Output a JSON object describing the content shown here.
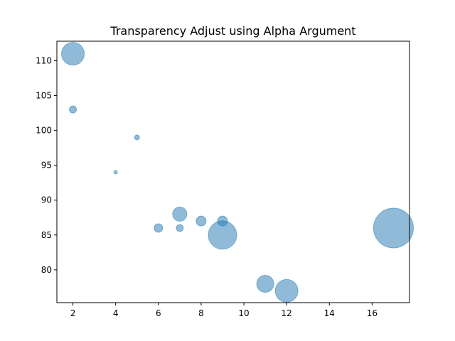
{
  "chart_data": {
    "type": "scatter",
    "title": "Transparency Adjust using Alpha Argument",
    "xlabel": "",
    "ylabel": "",
    "xlim": [
      1.25,
      17.75
    ],
    "ylim": [
      75.3,
      112.8
    ],
    "xticks": [
      2,
      4,
      6,
      8,
      10,
      12,
      14,
      16
    ],
    "yticks": [
      80,
      85,
      90,
      95,
      100,
      105,
      110
    ],
    "grid": false,
    "alpha": 0.5,
    "color": "#1f77b4",
    "points": [
      {
        "x": 2,
        "y": 111,
        "size": 16
      },
      {
        "x": 2,
        "y": 103,
        "size": 5
      },
      {
        "x": 5,
        "y": 99,
        "size": 3.5
      },
      {
        "x": 4,
        "y": 94,
        "size": 2.5
      },
      {
        "x": 7,
        "y": 88,
        "size": 10
      },
      {
        "x": 8,
        "y": 87,
        "size": 7
      },
      {
        "x": 9,
        "y": 87,
        "size": 7
      },
      {
        "x": 6,
        "y": 86,
        "size": 6
      },
      {
        "x": 7,
        "y": 86,
        "size": 5
      },
      {
        "x": 9,
        "y": 85,
        "size": 20
      },
      {
        "x": 17,
        "y": 86,
        "size": 28
      },
      {
        "x": 11,
        "y": 78,
        "size": 12
      },
      {
        "x": 12,
        "y": 77,
        "size": 16
      }
    ]
  }
}
